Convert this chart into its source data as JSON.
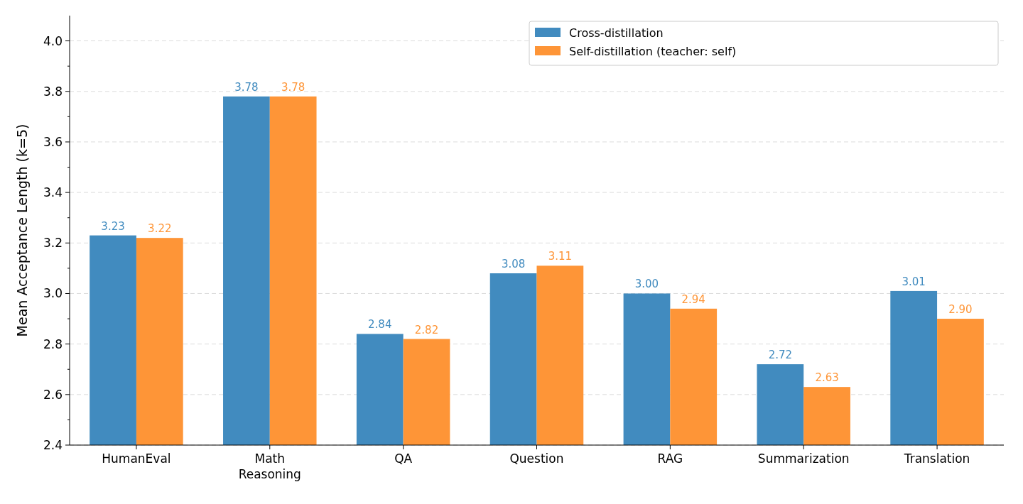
{
  "chart_data": {
    "type": "bar",
    "ylabel": "Mean Acceptance Length (k=5)",
    "categories": [
      "HumanEval",
      "Math\nReasoning",
      "QA",
      "Question",
      "RAG",
      "Summarization",
      "Translation"
    ],
    "series": [
      {
        "name": "Cross-distillation",
        "color": "#418bbf",
        "values": [
          3.23,
          3.78,
          2.84,
          3.08,
          3.0,
          2.72,
          3.01
        ],
        "value_labels": [
          "3.23",
          "3.78",
          "2.84",
          "3.08",
          "3.00",
          "2.72",
          "3.01"
        ]
      },
      {
        "name": "Self-distillation (teacher: self)",
        "color": "#fe9537",
        "values": [
          3.22,
          3.78,
          2.82,
          3.11,
          2.94,
          2.63,
          2.9
        ],
        "value_labels": [
          "3.22",
          "3.78",
          "2.82",
          "3.11",
          "2.94",
          "2.63",
          "2.90"
        ]
      }
    ],
    "ylim": [
      2.4,
      4.1
    ],
    "yticks": [
      2.4,
      {
        "value": 2.5,
        "label": null
      },
      2.6,
      {
        "value": 2.7,
        "label": null
      },
      2.8,
      {
        "value": 2.9,
        "label": null
      },
      {
        "value": 3.0,
        "label": "3.0"
      },
      {
        "value": 3.1,
        "label": null
      },
      3.2,
      {
        "value": 3.3,
        "label": null
      },
      3.4,
      {
        "value": 3.5,
        "label": null
      },
      3.6,
      {
        "value": 3.7,
        "label": null
      },
      3.8,
      {
        "value": 3.9,
        "label": null
      },
      {
        "value": 4.0,
        "label": "4.0"
      }
    ],
    "grid": "y",
    "legend": "top right"
  }
}
